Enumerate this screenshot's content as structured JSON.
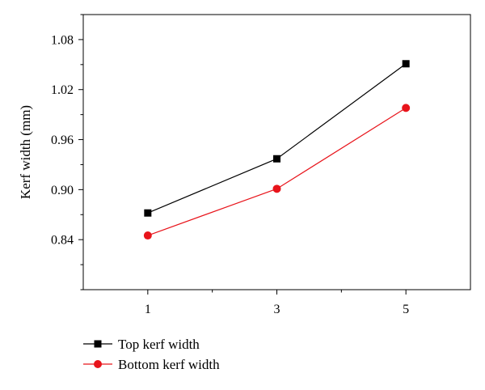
{
  "chart_data": {
    "type": "line",
    "title": "",
    "xlabel": "",
    "ylabel": "Kerf width (mm)",
    "x": [
      1,
      3,
      5
    ],
    "x_ticks": [
      1,
      3,
      5
    ],
    "x_tick_labels": [
      "1",
      "3",
      "5"
    ],
    "xlim": [
      0,
      6
    ],
    "y_ticks": [
      0.84,
      0.9,
      0.96,
      1.02,
      1.08
    ],
    "y_tick_labels": [
      "0.84",
      "0.90",
      "0.96",
      "1.02",
      "1.08"
    ],
    "ylim": [
      0.78,
      1.11
    ],
    "grid": false,
    "legend_position": "bottom-left, below plot",
    "series": [
      {
        "name": "Top kerf width",
        "values": [
          0.872,
          0.937,
          1.051
        ],
        "color": "#000000",
        "marker": "square"
      },
      {
        "name": "Bottom kerf width",
        "values": [
          0.845,
          0.901,
          0.998
        ],
        "color": "#e8141b",
        "marker": "circle"
      }
    ]
  }
}
